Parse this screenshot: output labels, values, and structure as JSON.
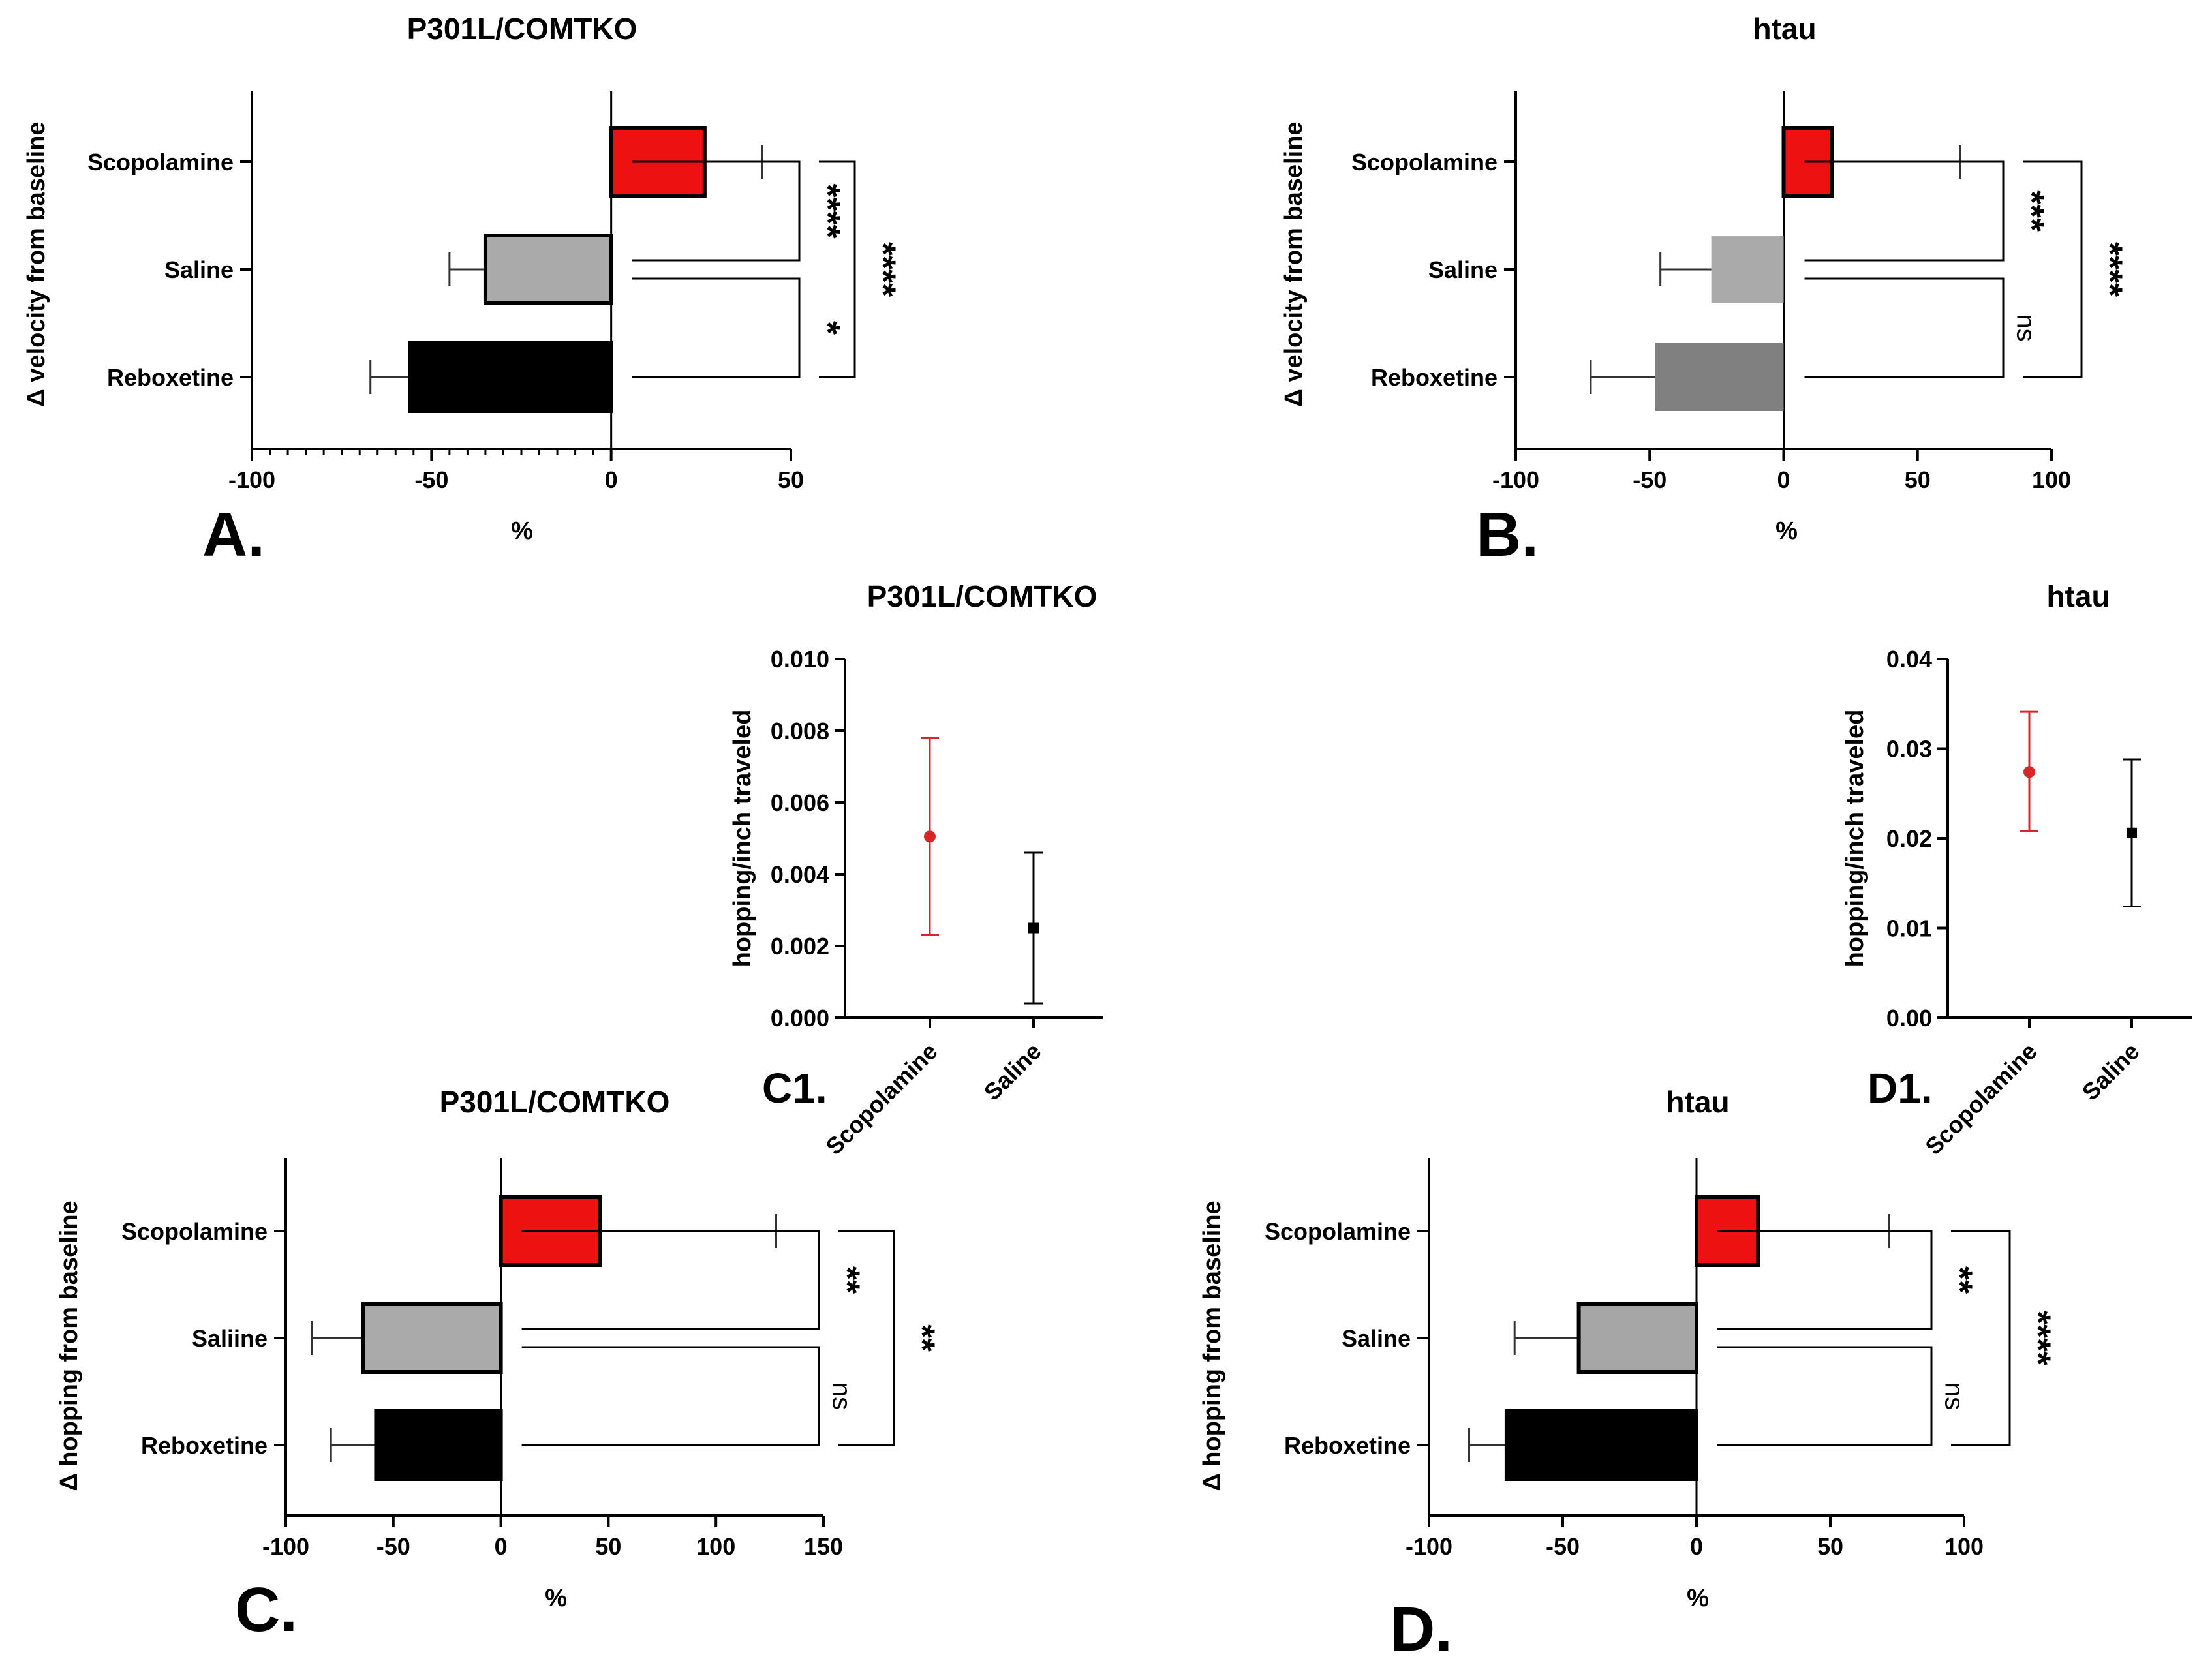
{
  "colors": {
    "scopolamine": "#ee1111",
    "saline_light": "#aaaaaa",
    "saline_dark": "#a6a6a6",
    "reboxetine_black": "#000000",
    "reboxetine_gray": "#808080",
    "dot_red": "#d62728",
    "dot_black": "#000000"
  },
  "chart_data": [
    {
      "id": "A",
      "panel_label": "A.",
      "type": "bar",
      "orientation": "horizontal",
      "title": "P301L/COMTKO",
      "ylabel": "Δ velocity from baseline",
      "xlabel": "%",
      "xlim": [
        -100,
        50
      ],
      "xticks": [
        -100,
        -50,
        0,
        50
      ],
      "minor_ticks": true,
      "bars": [
        {
          "label": "Scopolamine",
          "value": 26,
          "err": 16,
          "color": "#ee1111",
          "outline": true
        },
        {
          "label": "Saline",
          "value": -35,
          "err": 10,
          "color": "#aaaaaa",
          "outline": true
        },
        {
          "label": "Reboxetine",
          "value": -56,
          "err": 11,
          "color": "#000000",
          "outline": true
        }
      ],
      "significance": [
        {
          "from": 0,
          "to": 1,
          "text": "****",
          "level": 1
        },
        {
          "from": 1,
          "to": 2,
          "text": "*",
          "level": 1
        },
        {
          "from": 0,
          "to": 2,
          "text": "****",
          "level": 2
        }
      ]
    },
    {
      "id": "B",
      "panel_label": "B.",
      "type": "bar",
      "orientation": "horizontal",
      "title": "htau",
      "ylabel": "Δ velocity from baseline",
      "xlabel": "%",
      "xlim": [
        -100,
        100
      ],
      "xticks": [
        -100,
        -50,
        0,
        50,
        100
      ],
      "minor_ticks": false,
      "bars": [
        {
          "label": "Scopolamine",
          "value": 18,
          "err": 48,
          "color": "#ee1111",
          "outline": true
        },
        {
          "label": "Saline",
          "value": -27,
          "err": 19,
          "color": "#aaaaaa",
          "outline": false
        },
        {
          "label": "Reboxetine",
          "value": -48,
          "err": 24,
          "color": "#808080",
          "outline": false
        }
      ],
      "significance": [
        {
          "from": 0,
          "to": 1,
          "text": "***",
          "level": 1
        },
        {
          "from": 1,
          "to": 2,
          "text": "ns",
          "level": 1
        },
        {
          "from": 0,
          "to": 2,
          "text": "****",
          "level": 2
        }
      ]
    },
    {
      "id": "C",
      "panel_label": "C.",
      "type": "bar",
      "orientation": "horizontal",
      "title": "P301L/COMTKO",
      "ylabel": "Δ hopping from baseline",
      "xlabel": "%",
      "xlim": [
        -100,
        150
      ],
      "xticks": [
        -100,
        -50,
        0,
        50,
        100,
        150
      ],
      "minor_ticks": false,
      "bars": [
        {
          "label": "Scopolamine",
          "value": 46,
          "err": 82,
          "color": "#ee1111",
          "outline": true
        },
        {
          "label": "Saliine",
          "value": -64,
          "err": 24,
          "color": "#aaaaaa",
          "outline": true
        },
        {
          "label": "Reboxetine",
          "value": -58,
          "err": 21,
          "color": "#000000",
          "outline": true
        }
      ],
      "significance": [
        {
          "from": 0,
          "to": 1,
          "text": "**",
          "level": 1
        },
        {
          "from": 1,
          "to": 2,
          "text": "ns",
          "level": 1
        },
        {
          "from": 0,
          "to": 2,
          "text": "**",
          "level": 2
        }
      ]
    },
    {
      "id": "D",
      "panel_label": "D.",
      "type": "bar",
      "orientation": "horizontal",
      "title": "htau",
      "ylabel": "Δ hopping from baseline",
      "xlabel": "%",
      "xlim": [
        -100,
        100
      ],
      "xticks": [
        -100,
        -50,
        0,
        50,
        100
      ],
      "minor_ticks": false,
      "bars": [
        {
          "label": "Scopolamine",
          "value": 23,
          "err": 49,
          "color": "#ee1111",
          "outline": true
        },
        {
          "label": "Saline",
          "value": -44,
          "err": 24,
          "color": "#a6a6a6",
          "outline": true
        },
        {
          "label": "Reboxetine",
          "value": -71,
          "err": 14,
          "color": "#000000",
          "outline": true
        }
      ],
      "significance": [
        {
          "from": 0,
          "to": 1,
          "text": "**",
          "level": 1
        },
        {
          "from": 1,
          "to": 2,
          "text": "ns",
          "level": 1
        },
        {
          "from": 0,
          "to": 2,
          "text": "****",
          "level": 2
        }
      ]
    },
    {
      "id": "C1",
      "panel_label": "C1.",
      "type": "scatter",
      "title": "P301L/COMTKO",
      "ylabel": "hopping/inch traveled",
      "ylim": [
        0,
        0.01
      ],
      "yticks": [
        "0.000",
        "0.002",
        "0.004",
        "0.006",
        "0.008",
        "0.010"
      ],
      "categories": [
        "Scopolamine",
        "Saline"
      ],
      "points": [
        {
          "category": "Scopolamine",
          "y": 0.00505,
          "low": 0.0023,
          "high": 0.0078,
          "color": "#d62728",
          "marker": "circle"
        },
        {
          "category": "Saline",
          "y": 0.0025,
          "low": 0.0004,
          "high": 0.0046,
          "color": "#000000",
          "marker": "square"
        }
      ]
    },
    {
      "id": "D1",
      "panel_label": "D1.",
      "type": "scatter",
      "title": "htau",
      "ylabel": "hopping/inch traveled",
      "ylim": [
        0,
        0.04
      ],
      "yticks": [
        "0.00",
        "0.01",
        "0.02",
        "0.03",
        "0.04"
      ],
      "categories": [
        "Scopolamine",
        "Saline"
      ],
      "points": [
        {
          "category": "Scopolamine",
          "y": 0.0274,
          "low": 0.0208,
          "high": 0.0341,
          "color": "#d62728",
          "marker": "circle"
        },
        {
          "category": "Saline",
          "y": 0.0206,
          "low": 0.0124,
          "high": 0.0288,
          "color": "#000000",
          "marker": "square"
        }
      ]
    }
  ]
}
